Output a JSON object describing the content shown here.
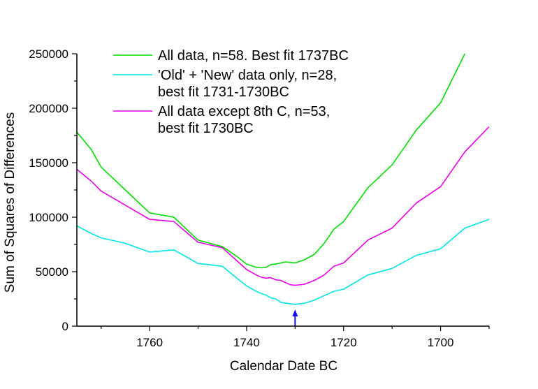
{
  "chart_data": {
    "type": "line",
    "title": "",
    "xlabel": "Calendar Date BC",
    "ylabel": "Sum of Squares of Differences",
    "x_reversed": true,
    "xlim": [
      1775,
      1690
    ],
    "ylim": [
      0,
      250000
    ],
    "x_ticks": [
      1760,
      1740,
      1720,
      1700
    ],
    "y_ticks": [
      0,
      50000,
      100000,
      150000,
      200000,
      250000
    ],
    "grid": false,
    "legend_position": "top-center",
    "series": [
      {
        "name": "All data, n=58. Best fit 1737BC",
        "color": "#00dd00",
        "x": [
          1775,
          1772,
          1770,
          1765,
          1760,
          1755,
          1750,
          1745,
          1742,
          1740,
          1738,
          1737,
          1736,
          1735,
          1734,
          1732,
          1731,
          1730,
          1728,
          1726,
          1724,
          1722,
          1720,
          1715,
          1710,
          1705,
          1700,
          1695
        ],
        "y": [
          178000,
          162000,
          146000,
          125000,
          104000,
          100000,
          79000,
          73000,
          64000,
          57000,
          54000,
          53500,
          54000,
          56500,
          57000,
          59000,
          58500,
          58000,
          61000,
          66000,
          76000,
          89000,
          96000,
          127000,
          148000,
          180000,
          205000,
          250000
        ]
      },
      {
        "name": "'Old' + 'New' data only, n=28, best fit 1731-1730BC",
        "color": "#00e5e5",
        "x": [
          1775,
          1772,
          1770,
          1765,
          1760,
          1755,
          1750,
          1745,
          1742,
          1740,
          1738,
          1737,
          1736,
          1735,
          1734,
          1733,
          1732,
          1731,
          1730,
          1728,
          1726,
          1724,
          1722,
          1720,
          1715,
          1710,
          1705,
          1700,
          1695,
          1690
        ],
        "y": [
          92000,
          85000,
          81000,
          76000,
          68000,
          70000,
          57500,
          55000,
          44000,
          37000,
          32000,
          30000,
          28500,
          26000,
          25000,
          22000,
          21000,
          20500,
          20000,
          21000,
          24000,
          28000,
          32000,
          34000,
          47000,
          53000,
          65000,
          71000,
          90000,
          98000
        ]
      },
      {
        "name": "All data except 8th C, n=53, best fit 1730BC",
        "color": "#e600e6",
        "x": [
          1775,
          1772,
          1770,
          1765,
          1760,
          1755,
          1750,
          1745,
          1742,
          1740,
          1738,
          1737,
          1736,
          1735,
          1734,
          1733,
          1732,
          1731,
          1730,
          1728,
          1726,
          1724,
          1722,
          1720,
          1715,
          1710,
          1705,
          1700,
          1695,
          1690
        ],
        "y": [
          144000,
          133000,
          124000,
          111000,
          98000,
          96000,
          77000,
          72000,
          60000,
          52000,
          47000,
          45000,
          44000,
          44500,
          42500,
          42000,
          40000,
          38000,
          37500,
          38500,
          42000,
          47000,
          55000,
          58000,
          79000,
          90000,
          113000,
          128000,
          160000,
          183000
        ]
      }
    ],
    "legend": {
      "entries": [
        {
          "lines": [
            "All data, n=58. Best fit 1737BC"
          ]
        },
        {
          "lines": [
            "'Old' + 'New' data only, n=28,",
            "best fit 1731-1730BC"
          ]
        },
        {
          "lines": [
            "All data except 8th C, n=53,",
            "best fit 1730BC"
          ]
        }
      ]
    },
    "annotation": {
      "type": "arrow",
      "x": 1730,
      "color": "#1010ee"
    }
  }
}
